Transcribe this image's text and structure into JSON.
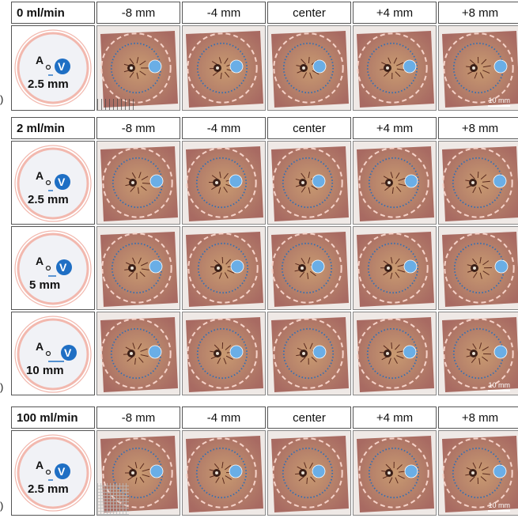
{
  "columns": [
    "-8 mm",
    "-4 mm",
    "center",
    "+4 mm",
    "+8 mm"
  ],
  "colors": {
    "tissue_outer": "#a86a62",
    "tissue_mid": "#b5806a",
    "tissue_inner": "#c99a70",
    "dashed_ring": "#f6d2c8",
    "ablation_dots": "#2e6fb5",
    "vessel": "#6aaee6",
    "schematic_ring": "#f2b8ae",
    "schematic_fill": "#f1f2f6",
    "vessel_badge": "#1f6fc4"
  },
  "panels": [
    {
      "flow_label": "0 ml/min",
      "side_label": ")",
      "rows": [
        {
          "schematic": {
            "antenna_label": "A",
            "vessel_label": "V",
            "distance_label": "2.5 mm"
          }
        }
      ],
      "scale_label": "10 mm"
    },
    {
      "flow_label": "2 ml/min",
      "side_label": ")",
      "rows": [
        {
          "schematic": {
            "antenna_label": "A",
            "vessel_label": "V",
            "distance_label": "2.5 mm"
          }
        },
        {
          "schematic": {
            "antenna_label": "A",
            "vessel_label": "V",
            "distance_label": "5 mm"
          }
        },
        {
          "schematic": {
            "antenna_label": "A",
            "vessel_label": "V",
            "distance_label": "10 mm"
          }
        }
      ],
      "scale_label": "10 mm"
    },
    {
      "flow_label": "100 ml/min",
      "side_label": ")",
      "rows": [
        {
          "schematic": {
            "antenna_label": "A",
            "vessel_label": "V",
            "distance_label": "2.5 mm"
          }
        }
      ],
      "scale_label": "10 mm"
    }
  ]
}
